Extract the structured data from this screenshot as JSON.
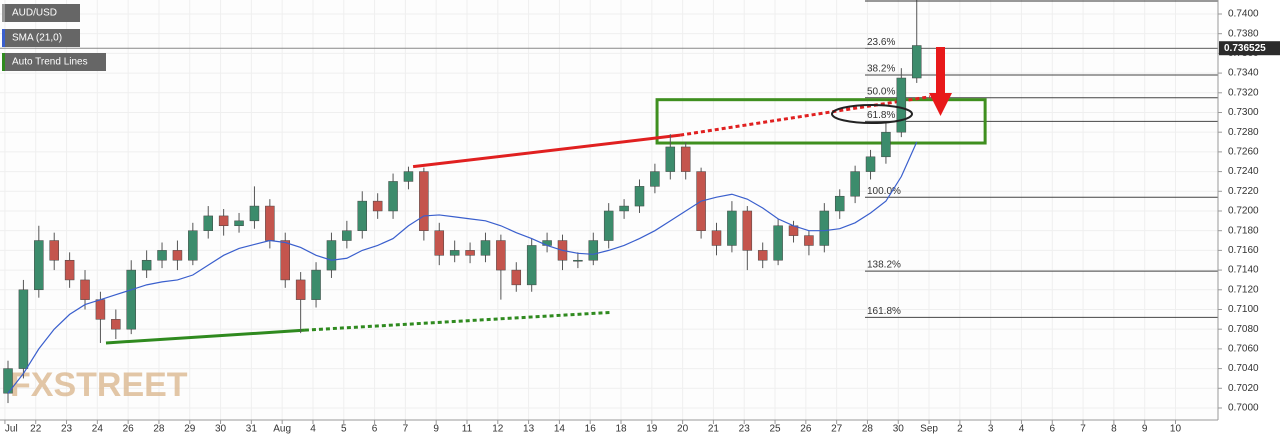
{
  "chart_data": {
    "type": "candlestick",
    "title": "AUD/USD",
    "watermark": "FXSTREET",
    "up_color": "#3c8c6c",
    "down_color": "#c4554d",
    "ylim": [
      0.69878,
      0.74142
    ],
    "yticks": [
      {
        "value": 0.7,
        "label": "0.7000"
      },
      {
        "value": 0.702,
        "label": "0.7020"
      },
      {
        "value": 0.704,
        "label": "0.7040"
      },
      {
        "value": 0.706,
        "label": "0.7060"
      },
      {
        "value": 0.708,
        "label": "0.7080"
      },
      {
        "value": 0.71,
        "label": "0.7100"
      },
      {
        "value": 0.712,
        "label": "0.7120"
      },
      {
        "value": 0.714,
        "label": "0.7140"
      },
      {
        "value": 0.716,
        "label": "0.7160"
      },
      {
        "value": 0.718,
        "label": "0.7180"
      },
      {
        "value": 0.72,
        "label": "0.7200"
      },
      {
        "value": 0.722,
        "label": "0.7220"
      },
      {
        "value": 0.724,
        "label": "0.7240"
      },
      {
        "value": 0.726,
        "label": "0.7260"
      },
      {
        "value": 0.728,
        "label": "0.7280"
      },
      {
        "value": 0.73,
        "label": "0.7300"
      },
      {
        "value": 0.732,
        "label": "0.7320"
      },
      {
        "value": 0.734,
        "label": "0.7340"
      },
      {
        "value": 0.736,
        "label": "0.7360"
      },
      {
        "value": 0.738,
        "label": "0.7380"
      },
      {
        "value": 0.74,
        "label": "0.7400"
      }
    ],
    "xlim": [
      -0.16,
      39.38
    ],
    "xticks": [
      {
        "value": 0,
        "label": "Jul"
      },
      1,
      2,
      3,
      4,
      5,
      6,
      7,
      8,
      9,
      10,
      11,
      12,
      13,
      14,
      15,
      16,
      17,
      18,
      19,
      20,
      21,
      22,
      23,
      24,
      25,
      26,
      27,
      28,
      29,
      30,
      31,
      32,
      33,
      34,
      35,
      36,
      37,
      38
    ],
    "xtick_labels": [
      "Jul",
      "22",
      "23",
      "24",
      "26",
      "28",
      "29",
      "30",
      "31",
      "Aug",
      "4",
      "5",
      "6",
      "7",
      "9",
      "11",
      "12",
      "13",
      "14",
      "16",
      "18",
      "19",
      "20",
      "21",
      "23",
      "25",
      "26",
      "27",
      "28",
      "30",
      "Sep",
      "2",
      "3",
      "4",
      "6",
      "7",
      "8",
      "9",
      "10"
    ],
    "grid": true,
    "x": [
      0.1,
      0.6,
      1.1,
      1.6,
      2.1,
      2.6,
      3.1,
      3.6,
      4.1,
      4.6,
      5.1,
      5.6,
      6.1,
      6.6,
      7.1,
      7.6,
      8.1,
      8.6,
      9.1,
      9.6,
      10.1,
      10.6,
      11.1,
      11.6,
      12.1,
      12.6,
      13.1,
      13.6,
      14.1,
      14.6,
      15.1,
      15.6,
      16.1,
      16.6,
      17.1,
      17.6,
      18.1,
      18.6,
      19.1,
      19.6,
      20.1,
      20.6,
      21.1,
      21.6,
      22.1,
      22.6,
      23.1,
      23.6,
      24.1,
      24.6,
      25.1,
      25.6,
      26.1,
      26.6,
      27.1,
      27.6,
      28.1,
      28.6,
      29.1,
      29.6
    ],
    "open": [
      0.7015,
      0.704,
      0.712,
      0.717,
      0.715,
      0.713,
      0.711,
      0.709,
      0.708,
      0.714,
      0.715,
      0.716,
      0.715,
      0.718,
      0.7195,
      0.7185,
      0.719,
      0.7205,
      0.717,
      0.713,
      0.711,
      0.714,
      0.717,
      0.718,
      0.721,
      0.72,
      0.723,
      0.724,
      0.718,
      0.7155,
      0.716,
      0.7155,
      0.717,
      0.714,
      0.7125,
      0.7165,
      0.717,
      0.715,
      0.715,
      0.717,
      0.72,
      0.7205,
      0.7225,
      0.724,
      0.7265,
      0.724,
      0.718,
      0.7165,
      0.72,
      0.716,
      0.715,
      0.7185,
      0.7175,
      0.7165,
      0.72,
      0.7215,
      0.724,
      0.7255,
      0.728,
      0.7335
    ],
    "high": [
      0.7048,
      0.713,
      0.7185,
      0.7178,
      0.7158,
      0.714,
      0.7118,
      0.71,
      0.715,
      0.716,
      0.7168,
      0.717,
      0.7188,
      0.7205,
      0.7202,
      0.7198,
      0.7225,
      0.7212,
      0.7178,
      0.7138,
      0.7148,
      0.7178,
      0.719,
      0.722,
      0.7218,
      0.7238,
      0.7245,
      0.7244,
      0.7188,
      0.717,
      0.7168,
      0.7178,
      0.7176,
      0.7148,
      0.7172,
      0.7178,
      0.7176,
      0.7158,
      0.7178,
      0.7208,
      0.7212,
      0.7232,
      0.7248,
      0.7278,
      0.727,
      0.7244,
      0.7188,
      0.721,
      0.7205,
      0.7168,
      0.7192,
      0.719,
      0.718,
      0.7208,
      0.7222,
      0.7246,
      0.7262,
      0.729,
      0.7345,
      0.742
    ],
    "low": [
      0.7005,
      0.703,
      0.7112,
      0.714,
      0.7122,
      0.71,
      0.7066,
      0.707,
      0.7075,
      0.7132,
      0.7142,
      0.714,
      0.7145,
      0.7172,
      0.7175,
      0.7178,
      0.7182,
      0.7162,
      0.7122,
      0.7076,
      0.7102,
      0.7132,
      0.7162,
      0.7172,
      0.7192,
      0.7192,
      0.7222,
      0.717,
      0.7145,
      0.7148,
      0.7147,
      0.7148,
      0.711,
      0.7118,
      0.7118,
      0.7158,
      0.714,
      0.7142,
      0.7145,
      0.7162,
      0.7192,
      0.7198,
      0.7218,
      0.7232,
      0.7232,
      0.7172,
      0.7155,
      0.7158,
      0.714,
      0.7142,
      0.7145,
      0.7168,
      0.7155,
      0.7158,
      0.7192,
      0.7208,
      0.7232,
      0.7248,
      0.7275,
      0.733
    ],
    "close": [
      0.704,
      0.712,
      0.717,
      0.715,
      0.713,
      0.711,
      0.709,
      0.708,
      0.714,
      0.715,
      0.716,
      0.715,
      0.718,
      0.7195,
      0.7185,
      0.719,
      0.7205,
      0.717,
      0.713,
      0.711,
      0.714,
      0.717,
      0.718,
      0.721,
      0.72,
      0.723,
      0.724,
      0.718,
      0.7155,
      0.716,
      0.7155,
      0.717,
      0.714,
      0.7125,
      0.7165,
      0.717,
      0.715,
      0.715,
      0.717,
      0.72,
      0.7205,
      0.7225,
      0.724,
      0.7265,
      0.724,
      0.718,
      0.7165,
      0.72,
      0.716,
      0.715,
      0.7185,
      0.7175,
      0.7165,
      0.72,
      0.7215,
      0.724,
      0.7255,
      0.728,
      0.7335,
      0.7368
    ],
    "last_price": 0.736525,
    "sma": {
      "name": "SMA (21,0)",
      "color": "#3a5fcd",
      "values": [
        0.7015,
        0.7035,
        0.706,
        0.708,
        0.7095,
        0.7105,
        0.711,
        0.7115,
        0.712,
        0.7125,
        0.7128,
        0.713,
        0.7135,
        0.7145,
        0.7155,
        0.7162,
        0.7166,
        0.717,
        0.7168,
        0.7163,
        0.7155,
        0.715,
        0.7152,
        0.716,
        0.7165,
        0.7172,
        0.7185,
        0.7195,
        0.7196,
        0.7194,
        0.7192,
        0.719,
        0.7185,
        0.7178,
        0.7172,
        0.7165,
        0.716,
        0.7157,
        0.7156,
        0.716,
        0.7165,
        0.7172,
        0.718,
        0.719,
        0.72,
        0.721,
        0.7214,
        0.7217,
        0.7212,
        0.7203,
        0.7192,
        0.7185,
        0.718,
        0.718,
        0.7182,
        0.7188,
        0.7198,
        0.721,
        0.7235,
        0.727
      ]
    },
    "trend_lines": {
      "name": "Auto Trend Lines",
      "color": "#2f8a1f",
      "lines": [
        {
          "color": "#e02020",
          "style": "solid",
          "x": [
            13.25,
            21.92
          ],
          "y": [
            0.7245,
            0.7277
          ]
        },
        {
          "color": "#e02020",
          "style": "dotted",
          "x": [
            21.92,
            30.03
          ],
          "y": [
            0.7277,
            0.7316
          ]
        },
        {
          "color": "#2f8a1f",
          "style": "solid",
          "x": [
            3.28,
            9.74
          ],
          "y": [
            0.7066,
            0.7079
          ]
        },
        {
          "color": "#2f8a1f",
          "style": "dotted",
          "x": [
            9.74,
            19.64
          ],
          "y": [
            0.7079,
            0.7097
          ]
        }
      ]
    },
    "zone": {
      "color": "#3f8f1f",
      "x": [
        21.17,
        31.82
      ],
      "y": [
        0.7269,
        0.7313
      ]
    },
    "fib_levels": [
      {
        "label": "23.6%",
        "value": 0.7365
      },
      {
        "label": "38.2%",
        "value": 0.7338
      },
      {
        "label": "50.0%",
        "value": 0.7315
      },
      {
        "label": "61.8%",
        "value": 0.7291
      },
      {
        "label": "100.0%",
        "value": 0.7214
      },
      {
        "label": "138.2%",
        "value": 0.7139
      },
      {
        "label": "161.8%",
        "value": 0.7092
      }
    ]
  }
}
